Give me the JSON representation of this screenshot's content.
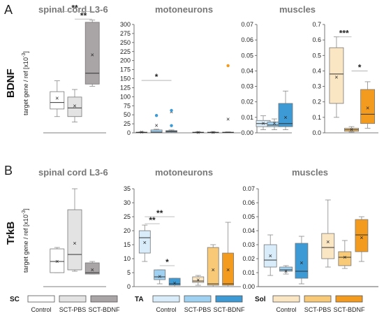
{
  "colors": {
    "SC": [
      "#ffffff",
      "#e3e3e3",
      "#a9a4a6"
    ],
    "TA": [
      "#d8ecfa",
      "#9fd2f2",
      "#3d9ad4"
    ],
    "Sol": [
      "#fbe6c4",
      "#f8c977",
      "#f39b1e"
    ]
  },
  "labels": {
    "rowA": "A",
    "rowB": "B",
    "geneA": "BDNF",
    "geneB": "TrkB",
    "ylabel_main": "target gene / ref [x10",
    "ylabel_exp": "-3",
    "ylabel_end": "]",
    "titleA1": "spinal cord L3-6",
    "titleA2": "motoneurons",
    "titleA3": "muscles",
    "titleB1": "spinal cord L3-6",
    "titleB2": "motoneurons",
    "titleB3": "muscles"
  },
  "legend": {
    "groups": [
      {
        "key": "SC",
        "label": "SC"
      },
      {
        "key": "TA",
        "label": "TA"
      },
      {
        "key": "Sol",
        "label": "Sol"
      }
    ],
    "items": [
      "Control",
      "SCT-PBS",
      "SCT-BDNF"
    ]
  },
  "chart_data": [
    {
      "id": "A1",
      "type": "box",
      "ylim": [
        0,
        10
      ],
      "yticks": [],
      "palette": "SC",
      "boxes": [
        {
          "q1": 2.2,
          "median": 2.8,
          "q3": 3.8,
          "wlo": 1.5,
          "whi": 4.8,
          "mean": 3.2
        },
        {
          "q1": 1.5,
          "median": 2.3,
          "q3": 3.3,
          "wlo": 1.0,
          "whi": 4.0,
          "mean": 2.5
        },
        {
          "q1": 4.5,
          "median": 5.5,
          "q3": 10.2,
          "wlo": 4.3,
          "whi": 10.4,
          "mean": 7.2
        }
      ],
      "sig": [
        {
          "from": 0,
          "to": 2,
          "label": "**",
          "y": 11.2
        },
        {
          "from": 1,
          "to": 2,
          "label": "**",
          "y": 10.5
        }
      ]
    },
    {
      "id": "A2",
      "type": "box",
      "ylim": [
        0,
        300
      ],
      "yticks": [
        0,
        25,
        50,
        75,
        100,
        125,
        150,
        175,
        200,
        225,
        250,
        275,
        300
      ],
      "palette": "SC",
      "boxes": [
        {
          "q1": 0,
          "median": 1,
          "q3": 2,
          "wlo": 0,
          "whi": 3,
          "mean": 1.5
        },
        {
          "q1": 0,
          "median": 2,
          "q3": 8,
          "wlo": 0,
          "whi": 10,
          "mean": 20
        },
        {
          "q1": 2,
          "median": 4,
          "q3": 6,
          "wlo": 0,
          "whi": 8,
          "mean": 58
        },
        {
          "q1": 0,
          "median": 1,
          "q3": 2,
          "wlo": 0,
          "whi": 3,
          "mean": 1
        },
        {
          "q1": 0,
          "median": 1,
          "q3": 2,
          "wlo": 0,
          "whi": 3,
          "mean": 1
        },
        {
          "q1": 0,
          "median": 1,
          "q3": 2,
          "wlo": 0,
          "whi": 3,
          "mean": 38
        }
      ],
      "outliers": [
        [
          2,
          62
        ],
        [
          2,
          20
        ],
        [
          1,
          48
        ],
        [
          5,
          186
        ]
      ],
      "sig": [
        {
          "from": 0,
          "to": 2,
          "label": "*",
          "y": 145
        }
      ]
    },
    {
      "id": "A3",
      "type": "box",
      "ylim": [
        0,
        0.07
      ],
      "yticks": [
        0,
        0.01,
        0.02,
        0.03,
        0.04,
        0.05,
        0.06,
        0.07
      ],
      "palette": "TA",
      "boxes": [
        {
          "q1": 0.004,
          "median": 0.006,
          "q3": 0.008,
          "wlo": 0.002,
          "whi": 0.011,
          "mean": 0.006
        },
        {
          "q1": 0.004,
          "median": 0.005,
          "q3": 0.007,
          "wlo": 0.002,
          "whi": 0.009,
          "mean": 0.006
        },
        {
          "q1": 0.004,
          "median": 0.006,
          "q3": 0.019,
          "wlo": 0.002,
          "whi": 0.027,
          "mean": 0.01
        }
      ]
    },
    {
      "id": "A4",
      "type": "box",
      "ylim": [
        0,
        0.7
      ],
      "yticks": [
        0,
        0.1,
        0.2,
        0.3,
        0.4,
        0.5,
        0.6,
        0.7
      ],
      "palette": "Sol",
      "boxes": [
        {
          "q1": 0.19,
          "median": 0.38,
          "q3": 0.55,
          "wlo": 0.1,
          "whi": 0.62,
          "mean": 0.36
        },
        {
          "q1": 0.01,
          "median": 0.02,
          "q3": 0.03,
          "wlo": 0.005,
          "whi": 0.04,
          "mean": 0.02
        },
        {
          "q1": 0.06,
          "median": 0.12,
          "q3": 0.28,
          "wlo": 0.03,
          "whi": 0.33,
          "mean": 0.16
        }
      ],
      "sig": [
        {
          "from": 0,
          "to": 1,
          "label": "***",
          "y": 0.62
        },
        {
          "from": 1,
          "to": 2,
          "label": "*",
          "y": 0.4
        }
      ]
    },
    {
      "id": "B1",
      "type": "box",
      "ylim": [
        0,
        70
      ],
      "yticks": [],
      "palette": "SC",
      "boxes": [
        {
          "q1": 10,
          "median": 18,
          "q3": 27,
          "wlo": 10,
          "whi": 28,
          "mean": 18
        },
        {
          "q1": 12,
          "median": 23,
          "q3": 55,
          "wlo": 11,
          "whi": 70,
          "mean": 31
        },
        {
          "q1": 9,
          "median": 10,
          "q3": 17,
          "wlo": 9,
          "whi": 18,
          "mean": 12
        }
      ]
    },
    {
      "id": "B2",
      "type": "box",
      "ylim": [
        0,
        35
      ],
      "yticks": [
        0,
        5,
        10,
        15,
        20,
        25,
        30,
        35
      ],
      "palette": "TA",
      "boxes": [
        {
          "q1": 12,
          "median": 17.5,
          "q3": 20,
          "wlo": 9,
          "whi": 22,
          "mean": 15.8
        },
        {
          "q1": 2.5,
          "median": 3.5,
          "q3": 6,
          "wlo": 1,
          "whi": 6,
          "mean": 3.6
        },
        {
          "q1": 0.5,
          "median": 1,
          "q3": 3,
          "wlo": 0,
          "whi": 3,
          "mean": 1.3
        },
        {
          "q1": 1.5,
          "median": 2,
          "q3": 3.5,
          "wlo": 0.5,
          "whi": 4,
          "mean": 2.4
        },
        {
          "q1": 0.5,
          "median": 1,
          "q3": 14,
          "wlo": 0,
          "whi": 15,
          "mean": 6
        },
        {
          "q1": 0.5,
          "median": 1,
          "q3": 12,
          "wlo": 0,
          "whi": 23,
          "mean": 6
        }
      ],
      "sig": [
        {
          "from": 0,
          "to": 1,
          "label": "**",
          "y": 22.5
        },
        {
          "from": 0,
          "to": 2,
          "label": "**",
          "y": 25
        },
        {
          "from": 1,
          "to": 2,
          "label": "*",
          "y": 7.5
        }
      ]
    },
    {
      "id": "B3",
      "type": "box",
      "ylim": [
        0,
        0.07
      ],
      "yticks": [
        0,
        0.01,
        0.02,
        0.03,
        0.04,
        0.05,
        0.06,
        0.07
      ],
      "palette": "TA",
      "boxes": [
        {
          "q1": 0.014,
          "median": 0.019,
          "q3": 0.03,
          "wlo": 0.008,
          "whi": 0.037,
          "mean": 0.022
        },
        {
          "q1": 0.011,
          "median": 0.012,
          "q3": 0.014,
          "wlo": 0.009,
          "whi": 0.015,
          "mean": 0.011
        },
        {
          "q1": 0.006,
          "median": 0.011,
          "q3": 0.031,
          "wlo": 0.002,
          "whi": 0.036,
          "mean": 0.017
        }
      ]
    },
    {
      "id": "B4",
      "type": "box",
      "ylim": [
        0,
        0.07
      ],
      "yticks": [],
      "palette": "Sol",
      "boxes": [
        {
          "q1": 0.02,
          "median": 0.028,
          "q3": 0.038,
          "wlo": 0.014,
          "whi": 0.062,
          "mean": 0.032
        },
        {
          "q1": 0.015,
          "median": 0.021,
          "q3": 0.025,
          "wlo": 0.013,
          "whi": 0.033,
          "mean": 0.021
        },
        {
          "q1": 0.025,
          "median": 0.037,
          "q3": 0.048,
          "wlo": 0.018,
          "whi": 0.05,
          "mean": 0.035
        }
      ]
    }
  ]
}
